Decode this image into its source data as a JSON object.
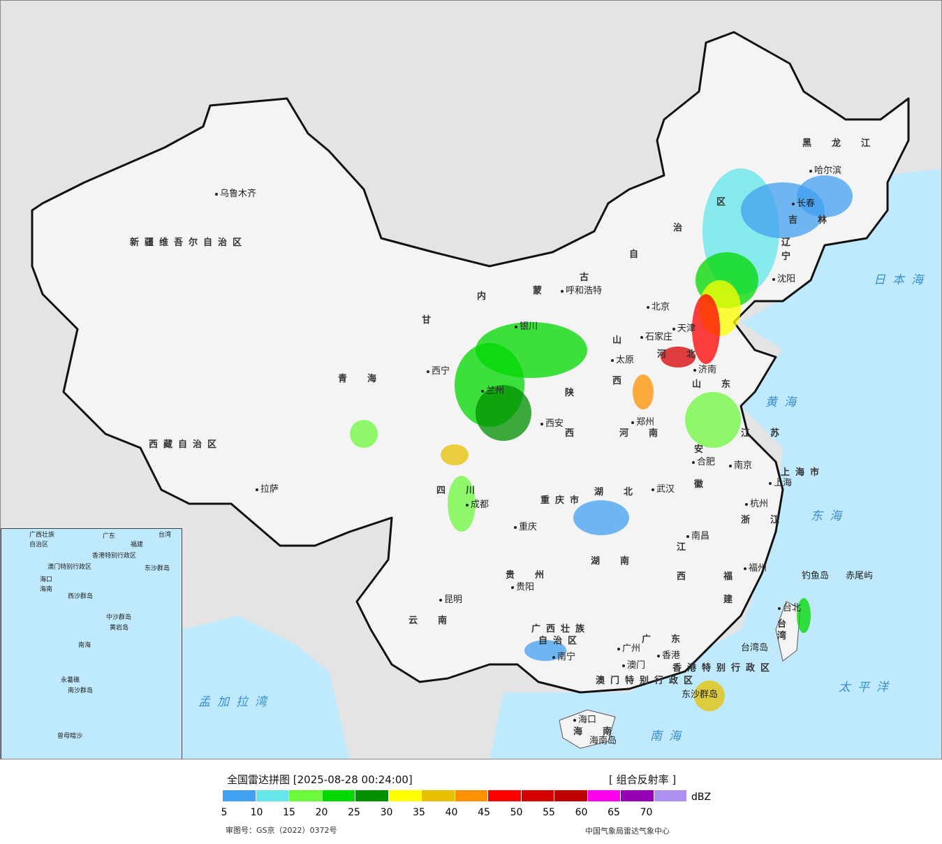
{
  "map": {
    "background_color": "#e4e4e4",
    "land_color": "#f4f4f4",
    "sea_color": "#bfe9fc",
    "provinces": [
      "新疆维吾尔自治区",
      "西藏自治区",
      "青　海",
      "甘",
      "内",
      "蒙",
      "古",
      "自",
      "治",
      "区",
      "黑　龙　江",
      "吉　林",
      "辽",
      "宁",
      "河　北",
      "山",
      "西",
      "山　东",
      "陕",
      "西",
      "河　南",
      "江　苏",
      "安",
      "徽",
      "上海市",
      "湖　北",
      "四　川",
      "重庆市",
      "浙　江",
      "湖　南",
      "江",
      "西",
      "贵　州",
      "福",
      "建",
      "云　南",
      "台",
      "湾",
      "广西壮族",
      "自治区",
      "广　东",
      "海　南",
      "香港特别行政区",
      "澳门特别行政区"
    ],
    "cities": [
      "乌鲁木齐",
      "拉萨",
      "西宁",
      "呼和浩特",
      "哈尔滨",
      "长春",
      "北京",
      "天津",
      "石家庄",
      "太原",
      "济南",
      "西安",
      "郑州",
      "合肥",
      "南京",
      "上海",
      "武汉",
      "成都",
      "重庆",
      "杭州",
      "南昌",
      "贵阳",
      "福州",
      "昆明",
      "台北",
      "南宁",
      "广州",
      "香港",
      "澳门",
      "海口",
      "兰州",
      "银川",
      "沈阳"
    ],
    "islands": [
      "钓鱼岛",
      "赤尾屿",
      "台湾岛",
      "东沙群岛",
      "海南岛"
    ],
    "seas": [
      "日本海",
      "黄海",
      "东海",
      "太平洋",
      "孟加拉湾",
      "南海"
    ],
    "inset_labels": [
      "广西壮族",
      "自治区",
      "广东",
      "福建",
      "台湾",
      "香港特别行政区",
      "澳门特别行政区",
      "海口",
      "海南",
      "东沙群岛",
      "西沙群岛",
      "中沙群岛",
      "黄岩岛",
      "南海",
      "永暑礁",
      "南沙群岛",
      "曾母暗沙"
    ]
  },
  "legend": {
    "title": "全国雷达拼图 [2025-08-28 00:24:00]",
    "product": "[ 组合反射率 ]",
    "unit": "dBZ",
    "colors": [
      "#42a0f0",
      "#64e6ea",
      "#6efa3c",
      "#00d800",
      "#009000",
      "#ffff00",
      "#e7c000",
      "#ff9000",
      "#ff0000",
      "#d60000",
      "#c00000",
      "#ff00f0",
      "#9600b4",
      "#ad90f0"
    ],
    "ticks": [
      "5",
      "10",
      "15",
      "20",
      "25",
      "30",
      "35",
      "40",
      "45",
      "50",
      "55",
      "60",
      "65",
      "70"
    ],
    "approval": "审图号：GS京（2022）0372号",
    "credit": "中国气象局雷达气象中心"
  }
}
